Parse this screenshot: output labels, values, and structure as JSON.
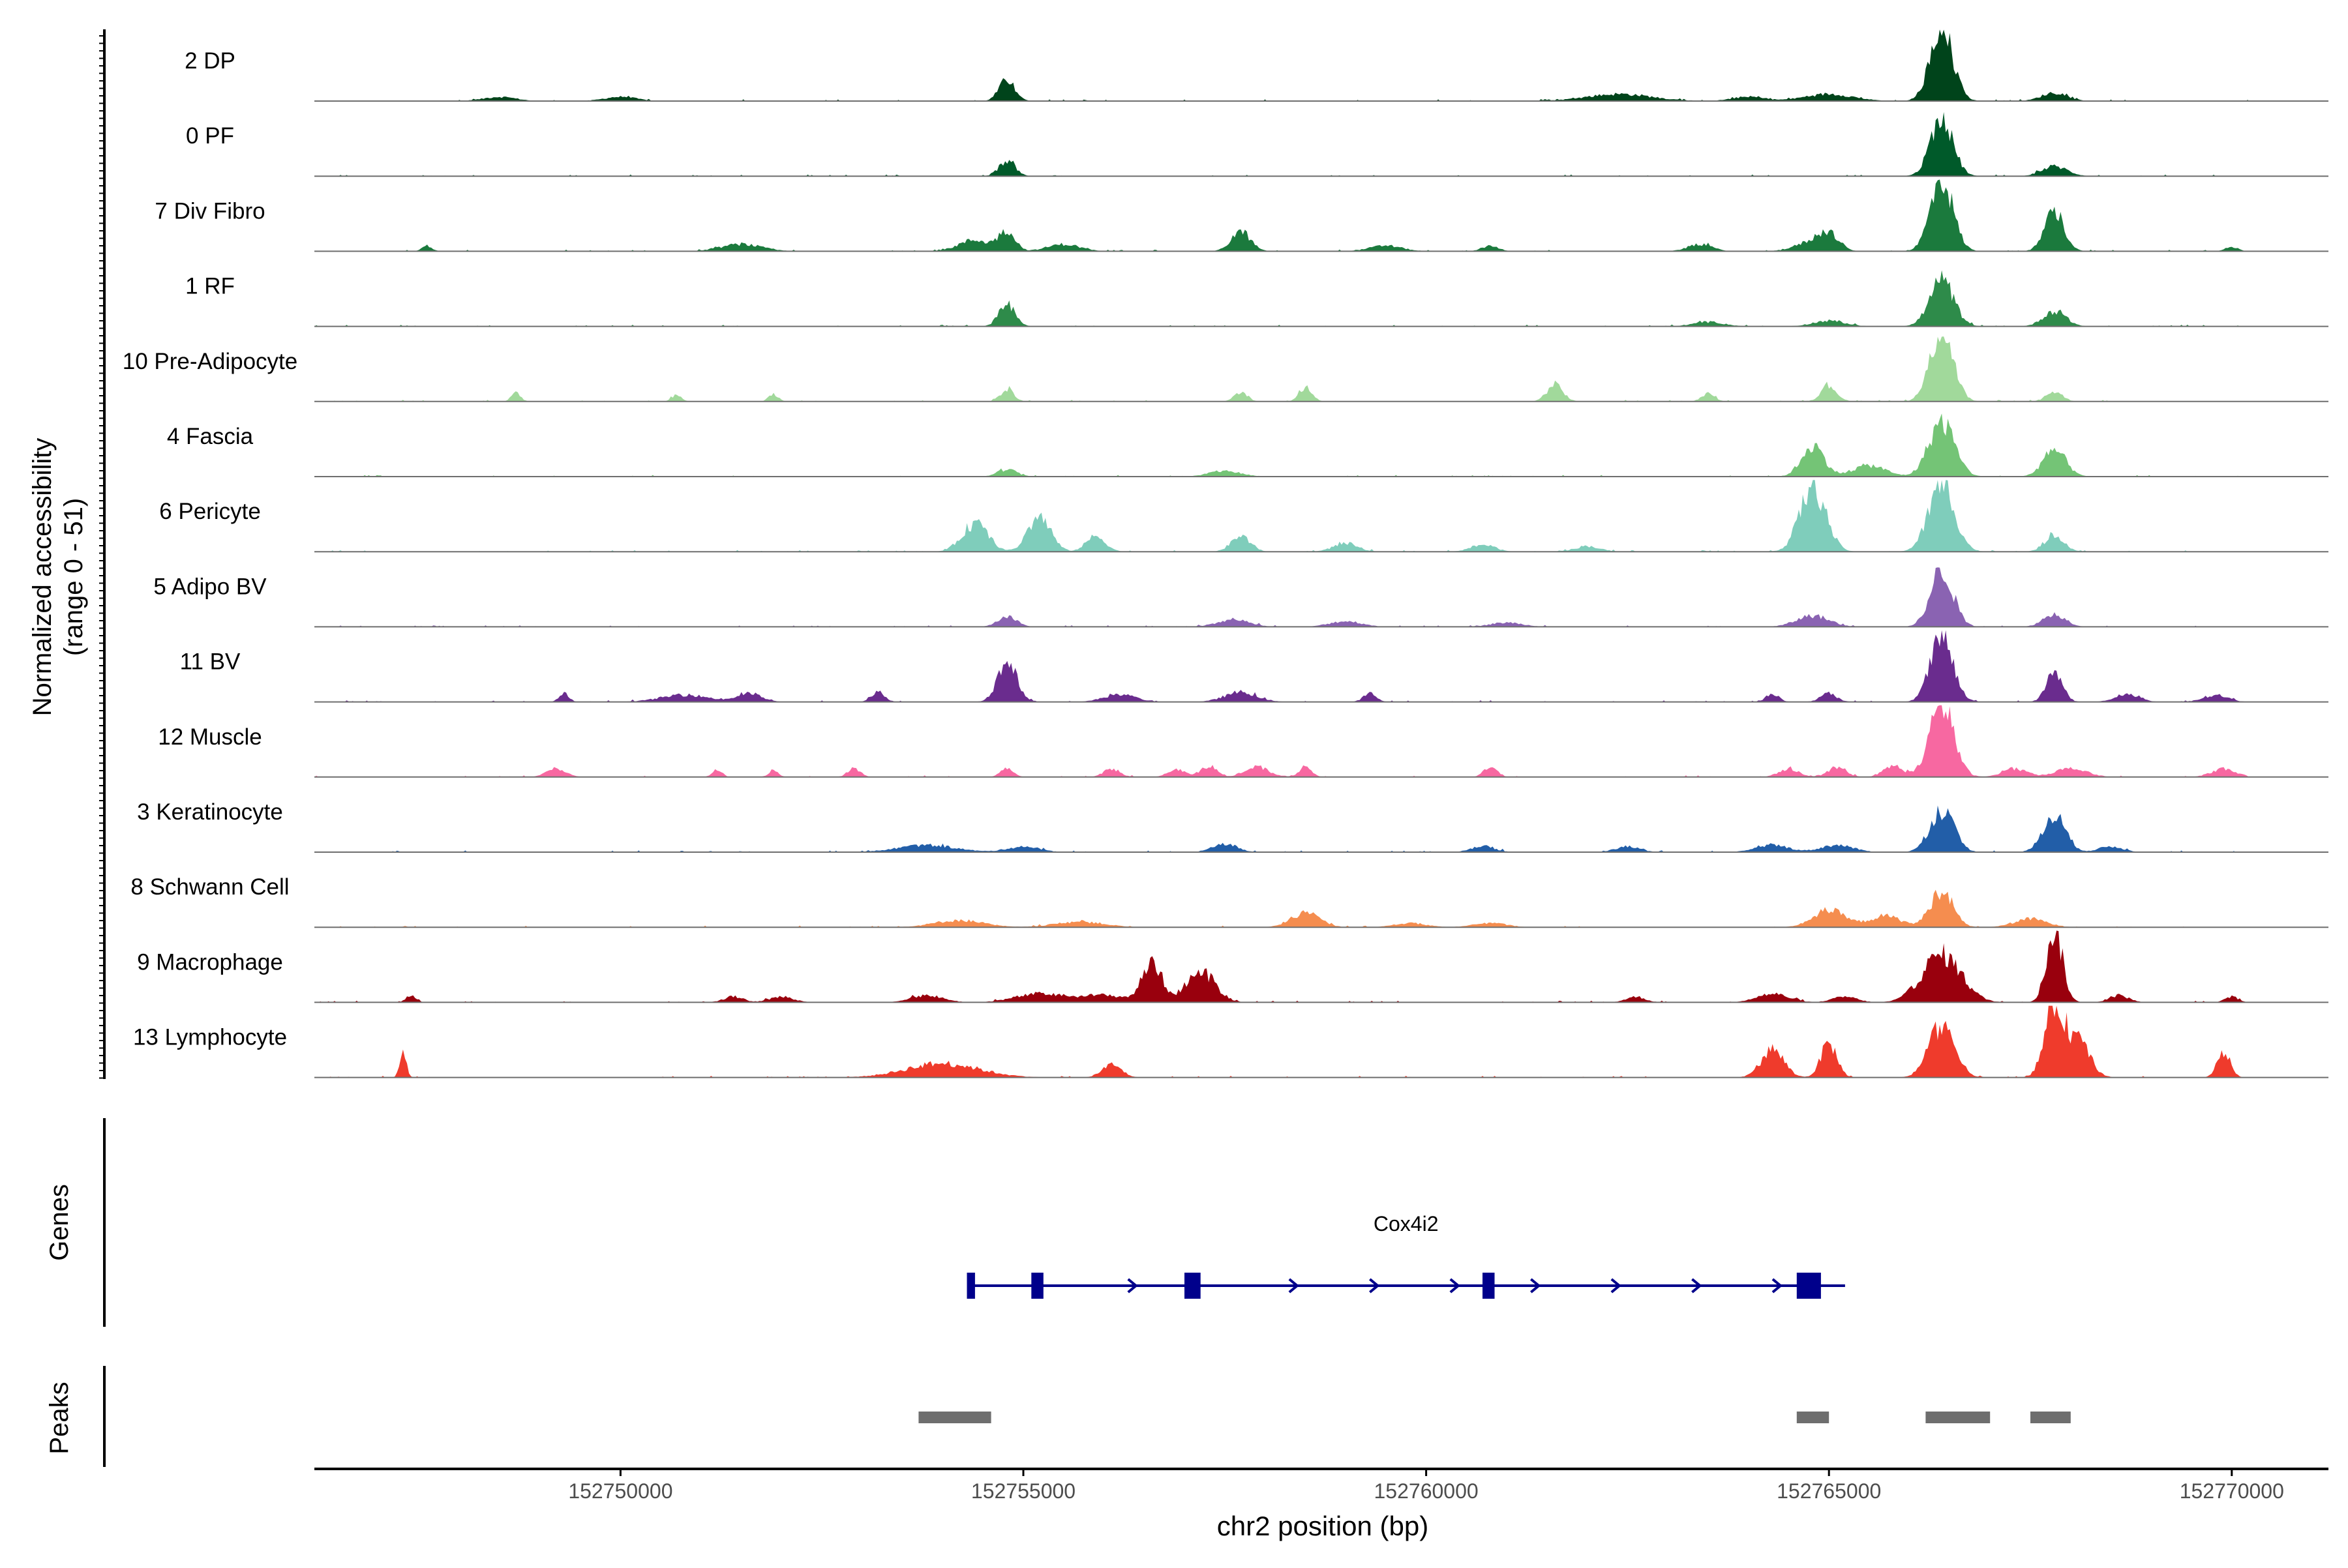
{
  "chart_data": {
    "type": "area",
    "ylabel_line1": "Normalized accessibility",
    "ylabel_line2": "(range 0 - 51)",
    "genes_label": "Genes",
    "peaks_label": "Peaks",
    "xlabel": "chr2 position (bp)",
    "xlim": [
      152746200,
      152771200
    ],
    "x_ticks": [
      152750000,
      152755000,
      152760000,
      152765000,
      152770000
    ],
    "x_tick_labels": [
      "152750000",
      "152755000",
      "152760000",
      "152765000",
      "152770000"
    ],
    "track_ymax": 51,
    "tracks": [
      {
        "name": "2 DP",
        "color": "#00441b",
        "peaks": [
          [
            152754800,
            15,
            100
          ],
          [
            152762400,
            5,
            400
          ],
          [
            152764000,
            3,
            200
          ],
          [
            152765000,
            5,
            300
          ],
          [
            152766400,
            51,
            140
          ],
          [
            152767800,
            6,
            160
          ],
          [
            152750000,
            3,
            200
          ],
          [
            152748500,
            3,
            200
          ]
        ]
      },
      {
        "name": "0 PF",
        "color": "#005a2a",
        "peaks": [
          [
            152754800,
            11,
            100
          ],
          [
            152766400,
            40,
            140
          ],
          [
            152767800,
            7,
            160
          ]
        ]
      },
      {
        "name": "7 Div Fibro",
        "color": "#1b7a3d",
        "peaks": [
          [
            152747600,
            4,
            60
          ],
          [
            152751500,
            5,
            250
          ],
          [
            152754400,
            8,
            200
          ],
          [
            152754800,
            14,
            100
          ],
          [
            152755500,
            5,
            200
          ],
          [
            152757700,
            14,
            120
          ],
          [
            152759500,
            4,
            200
          ],
          [
            152760800,
            4,
            100
          ],
          [
            152763400,
            5,
            150
          ],
          [
            152764800,
            7,
            200
          ],
          [
            152765000,
            10,
            120
          ],
          [
            152766400,
            51,
            140
          ],
          [
            152767800,
            28,
            120
          ],
          [
            152770000,
            3,
            80
          ]
        ]
      },
      {
        "name": "1 RF",
        "color": "#2e8b4a",
        "peaks": [
          [
            152754800,
            16,
            100
          ],
          [
            152763500,
            3,
            200
          ],
          [
            152765000,
            4,
            200
          ],
          [
            152766400,
            32,
            150
          ],
          [
            152767800,
            11,
            140
          ]
        ]
      },
      {
        "name": "10 Pre-Adipocyte",
        "color": "#a1d99b",
        "peaks": [
          [
            152748700,
            6,
            60
          ],
          [
            152750700,
            5,
            60
          ],
          [
            152751900,
            5,
            60
          ],
          [
            152754800,
            9,
            80
          ],
          [
            152757700,
            7,
            80
          ],
          [
            152758500,
            10,
            80
          ],
          [
            152761600,
            12,
            100
          ],
          [
            152763500,
            6,
            80
          ],
          [
            152765000,
            11,
            100
          ],
          [
            152766400,
            51,
            140
          ],
          [
            152767800,
            7,
            100
          ]
        ]
      },
      {
        "name": "4 Fascia",
        "color": "#74c476",
        "peaks": [
          [
            152754800,
            5,
            120
          ],
          [
            152757500,
            4,
            200
          ],
          [
            152764800,
            22,
            140
          ],
          [
            152765500,
            8,
            200
          ],
          [
            152766400,
            39,
            160
          ],
          [
            152767800,
            19,
            140
          ]
        ]
      },
      {
        "name": "6 Pericyte",
        "color": "#7fcdbb",
        "peaks": [
          [
            152754400,
            20,
            160
          ],
          [
            152755200,
            25,
            140
          ],
          [
            152755900,
            11,
            120
          ],
          [
            152757700,
            11,
            120
          ],
          [
            152759000,
            6,
            150
          ],
          [
            152760700,
            5,
            150
          ],
          [
            152762000,
            4,
            150
          ],
          [
            152764800,
            46,
            160
          ],
          [
            152766400,
            48,
            160
          ],
          [
            152767800,
            12,
            120
          ]
        ]
      },
      {
        "name": "5 Adipo BV",
        "color": "#8a63b2",
        "peaks": [
          [
            152754800,
            7,
            120
          ],
          [
            152757600,
            5,
            200
          ],
          [
            152759000,
            4,
            200
          ],
          [
            152761000,
            3,
            200
          ],
          [
            152764800,
            8,
            200
          ],
          [
            152766400,
            40,
            140
          ],
          [
            152767800,
            9,
            140
          ]
        ]
      },
      {
        "name": "11 BV",
        "color": "#6a2c8e",
        "peaks": [
          [
            152749300,
            6,
            60
          ],
          [
            152750800,
            5,
            300
          ],
          [
            152751600,
            6,
            150
          ],
          [
            152753200,
            7,
            80
          ],
          [
            152754800,
            28,
            120
          ],
          [
            152756200,
            5,
            200
          ],
          [
            152757700,
            7,
            200
          ],
          [
            152759300,
            6,
            80
          ],
          [
            152764300,
            6,
            80
          ],
          [
            152765000,
            6,
            100
          ],
          [
            152766400,
            46,
            140
          ],
          [
            152767800,
            21,
            100
          ],
          [
            152768700,
            5,
            150
          ],
          [
            152769800,
            5,
            150
          ]
        ]
      },
      {
        "name": "12 Muscle",
        "color": "#f768a1",
        "peaks": [
          [
            152749200,
            6,
            120
          ],
          [
            152751200,
            5,
            60
          ],
          [
            152751900,
            5,
            60
          ],
          [
            152752900,
            6,
            80
          ],
          [
            152754800,
            6,
            80
          ],
          [
            152756100,
            6,
            100
          ],
          [
            152756900,
            6,
            100
          ],
          [
            152757300,
            8,
            100
          ],
          [
            152757900,
            7,
            150
          ],
          [
            152758500,
            7,
            80
          ],
          [
            152760800,
            8,
            80
          ],
          [
            152764500,
            6,
            120
          ],
          [
            152765100,
            6,
            120
          ],
          [
            152765800,
            8,
            120
          ],
          [
            152766400,
            51,
            150
          ],
          [
            152767300,
            6,
            150
          ],
          [
            152768000,
            6,
            200
          ],
          [
            152769900,
            6,
            150
          ]
        ]
      },
      {
        "name": "3 Keratinocyte",
        "color": "#225ea8",
        "peaks": [
          [
            152753800,
            5,
            350
          ],
          [
            152755000,
            4,
            200
          ],
          [
            152757500,
            6,
            150
          ],
          [
            152760700,
            4,
            150
          ],
          [
            152762500,
            4,
            150
          ],
          [
            152764300,
            5,
            200
          ],
          [
            152765100,
            5,
            200
          ],
          [
            152766400,
            30,
            150
          ],
          [
            152767800,
            26,
            140
          ],
          [
            152768500,
            4,
            150
          ]
        ]
      },
      {
        "name": "8 Schwann Cell",
        "color": "#f58d4f",
        "peaks": [
          [
            152754200,
            5,
            300
          ],
          [
            152755700,
            4,
            300
          ],
          [
            152758500,
            10,
            180
          ],
          [
            152759800,
            3,
            200
          ],
          [
            152760800,
            3,
            200
          ],
          [
            152765000,
            12,
            200
          ],
          [
            152765700,
            8,
            200
          ],
          [
            152766400,
            26,
            140
          ],
          [
            152767500,
            6,
            200
          ]
        ]
      },
      {
        "name": "9 Macrophage",
        "color": "#99000d",
        "peaks": [
          [
            152747400,
            5,
            60
          ],
          [
            152751400,
            4,
            120
          ],
          [
            152752000,
            4,
            150
          ],
          [
            152753800,
            5,
            200
          ],
          [
            152755200,
            6,
            300
          ],
          [
            152756000,
            5,
            300
          ],
          [
            152756600,
            28,
            120
          ],
          [
            152757200,
            22,
            180
          ],
          [
            152762600,
            4,
            120
          ],
          [
            152764300,
            6,
            200
          ],
          [
            152765200,
            4,
            150
          ],
          [
            152766400,
            34,
            240
          ],
          [
            152767800,
            51,
            100
          ],
          [
            152768600,
            5,
            120
          ],
          [
            152770000,
            4,
            80
          ]
        ]
      },
      {
        "name": "13 Lymphocyte",
        "color": "#ef3b2c",
        "peaks": [
          [
            152747300,
            20,
            40
          ],
          [
            152754000,
            10,
            450
          ],
          [
            152756100,
            9,
            120
          ],
          [
            152764300,
            20,
            140
          ],
          [
            152765000,
            24,
            100
          ],
          [
            152766400,
            37,
            160
          ],
          [
            152767800,
            51,
            120
          ],
          [
            152768100,
            25,
            140
          ],
          [
            152769900,
            18,
            80
          ]
        ]
      }
    ],
    "gene": {
      "name": "Cox4i2",
      "start": 152754300,
      "end": 152765200,
      "color": "#00008b",
      "exons": [
        [
          152754300,
          152754400
        ],
        [
          152755100,
          152755250
        ],
        [
          152757000,
          152757200
        ],
        [
          152760700,
          152760850
        ],
        [
          152764600,
          152764900
        ]
      ]
    },
    "peak_regions": [
      [
        152753700,
        152754600
      ],
      [
        152764600,
        152765000
      ],
      [
        152766200,
        152767000
      ],
      [
        152767500,
        152768000
      ]
    ],
    "peak_color": "#6e6e6e"
  }
}
